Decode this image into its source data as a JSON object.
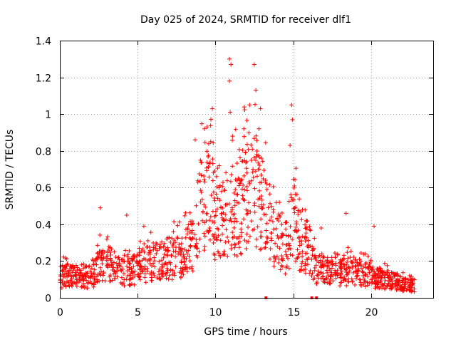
{
  "chart_data": {
    "type": "scatter",
    "title": "Day 025 of 2024, SRMTID for receiver dlf1",
    "xlabel": "GPS time / hours",
    "ylabel": "SRMTID / TECUs",
    "xlim": [
      0,
      24
    ],
    "ylim": [
      0,
      1.4
    ],
    "xticks": [
      0,
      5,
      10,
      15,
      20
    ],
    "yticks": [
      0,
      0.2,
      0.4,
      0.6,
      0.8,
      1,
      1.2,
      1.4
    ],
    "xtick_labels": [
      "0",
      "5",
      "10",
      "15",
      "20"
    ],
    "ytick_labels": [
      "0",
      "0.2",
      "0.4",
      "0.6",
      "0.8",
      "1",
      "1.2",
      "1.4"
    ],
    "grid": true,
    "marker": "plus",
    "color": "#ff0000",
    "series": [
      {
        "name": "SRMTID",
        "trend": {
          "x": [
            0,
            1,
            2,
            2.5,
            3,
            4,
            5,
            6,
            7,
            7.5,
            8,
            8.5,
            9,
            9.5,
            10,
            10.5,
            11,
            11.5,
            12,
            12.5,
            13,
            13.5,
            14,
            14.5,
            15,
            15.5,
            16,
            16.5,
            17,
            18,
            19,
            20,
            21,
            22,
            22.8
          ],
          "y": [
            0.12,
            0.12,
            0.1,
            0.18,
            0.2,
            0.14,
            0.16,
            0.2,
            0.22,
            0.22,
            0.24,
            0.3,
            0.5,
            0.6,
            0.45,
            0.42,
            0.48,
            0.5,
            0.58,
            0.62,
            0.55,
            0.4,
            0.33,
            0.22,
            0.45,
            0.3,
            0.28,
            0.15,
            0.18,
            0.14,
            0.15,
            0.12,
            0.1,
            0.08,
            0.07
          ]
        },
        "peaks": [
          {
            "x": 2.6,
            "y": 0.49
          },
          {
            "x": 4.3,
            "y": 0.45
          },
          {
            "x": 5.4,
            "y": 0.39
          },
          {
            "x": 7.3,
            "y": 0.36
          },
          {
            "x": 8.7,
            "y": 0.86
          },
          {
            "x": 9.3,
            "y": 0.92
          },
          {
            "x": 9.7,
            "y": 0.85
          },
          {
            "x": 9.8,
            "y": 1.03
          },
          {
            "x": 10.9,
            "y": 1.3
          },
          {
            "x": 11.0,
            "y": 1.27
          },
          {
            "x": 10.9,
            "y": 1.18
          },
          {
            "x": 10.95,
            "y": 1.01
          },
          {
            "x": 11.1,
            "y": 0.88
          },
          {
            "x": 12.5,
            "y": 1.27
          },
          {
            "x": 12.6,
            "y": 1.13
          },
          {
            "x": 12.2,
            "y": 1.05
          },
          {
            "x": 12.9,
            "y": 1.03
          },
          {
            "x": 12.8,
            "y": 0.92
          },
          {
            "x": 13.3,
            "y": 0.62
          },
          {
            "x": 14.9,
            "y": 1.05
          },
          {
            "x": 14.95,
            "y": 0.97
          },
          {
            "x": 14.8,
            "y": 0.83
          },
          {
            "x": 15.6,
            "y": 0.48
          },
          {
            "x": 16.8,
            "y": 0.38
          },
          {
            "x": 18.4,
            "y": 0.46
          },
          {
            "x": 20.2,
            "y": 0.39
          }
        ]
      }
    ],
    "zero_flags_x": [
      13.25,
      16.2,
      16.5
    ]
  }
}
